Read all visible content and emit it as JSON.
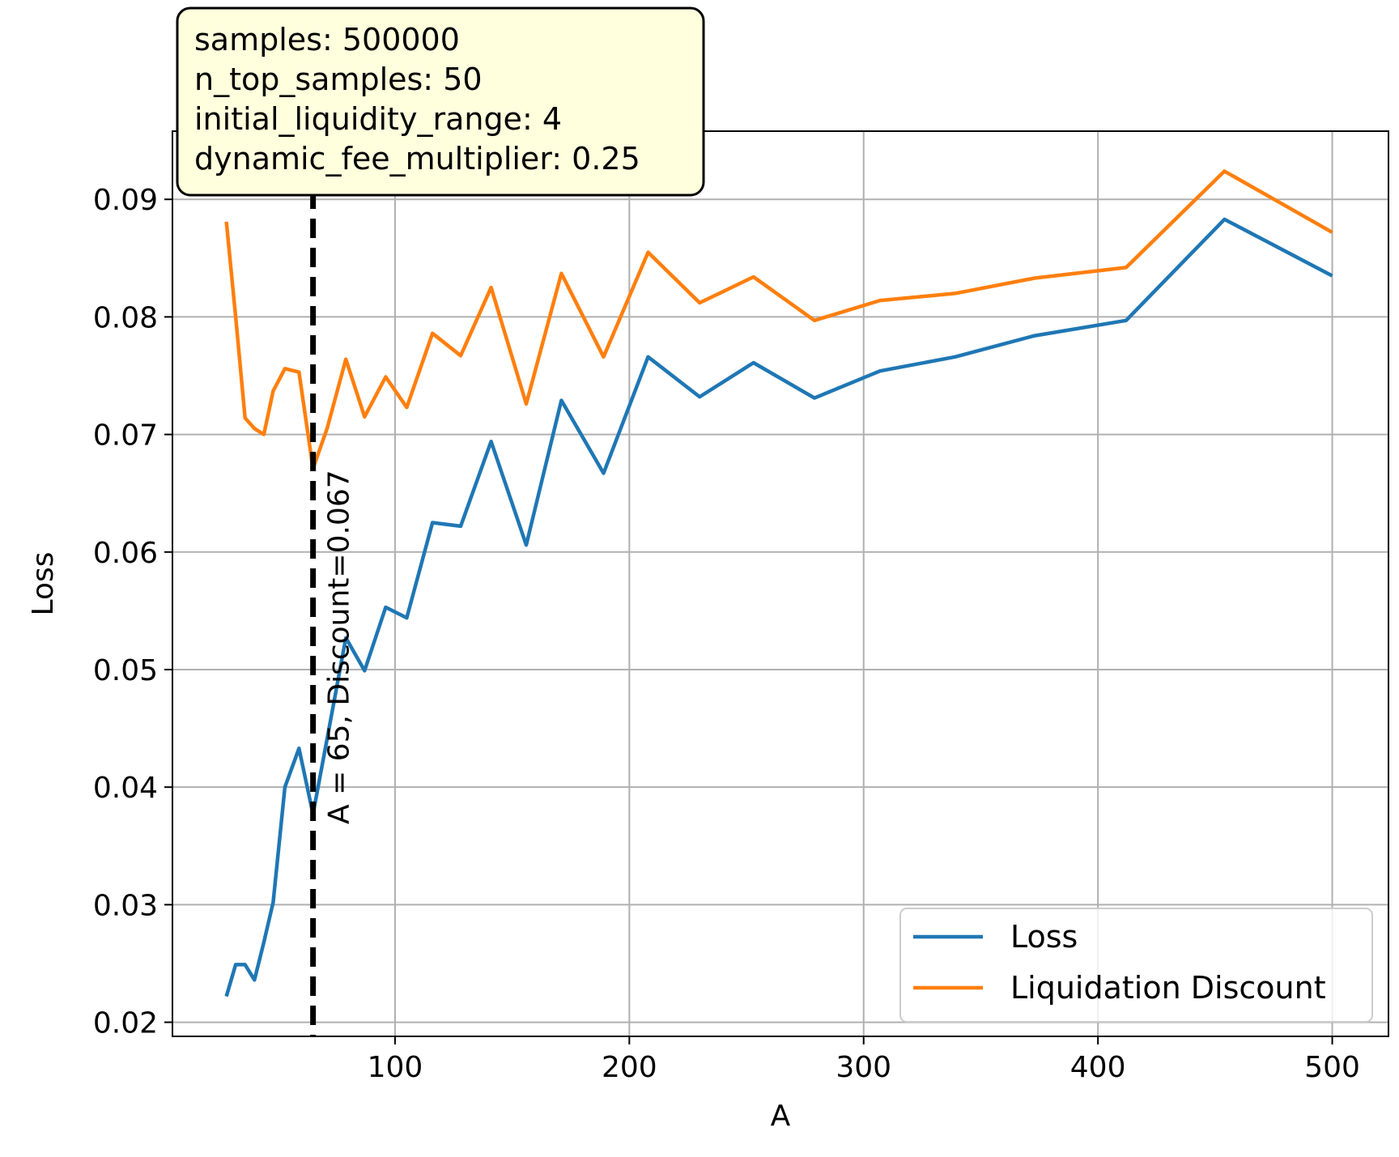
{
  "chart_data": {
    "type": "line",
    "xlabel": "A",
    "ylabel": "Loss",
    "xlim": [
      5,
      524
    ],
    "ylim": [
      0.0188,
      0.0958
    ],
    "grid": true,
    "legend_position": "lower-right",
    "x_ticks": [
      100,
      200,
      300,
      400,
      500
    ],
    "x_tick_labels": [
      "100",
      "200",
      "300",
      "400",
      "500"
    ],
    "y_ticks": [
      0.02,
      0.03,
      0.04,
      0.05,
      0.06,
      0.07,
      0.08,
      0.09
    ],
    "y_tick_labels": [
      "0.02",
      "0.03",
      "0.04",
      "0.05",
      "0.06",
      "0.07",
      "0.08",
      "0.09"
    ],
    "x": [
      28,
      32,
      36,
      40,
      44,
      48,
      53,
      59,
      65,
      71,
      79,
      87,
      96,
      105,
      116,
      128,
      141,
      156,
      171,
      189,
      208,
      230,
      253,
      279,
      307,
      339,
      373,
      412,
      454,
      500
    ],
    "series": [
      {
        "name": "Loss",
        "color": "#1f77b4",
        "values": [
          0.0222,
          0.0249,
          0.0249,
          0.0236,
          0.0268,
          0.0302,
          0.04,
          0.0433,
          0.0377,
          0.0441,
          0.0527,
          0.0499,
          0.0553,
          0.0544,
          0.0625,
          0.0622,
          0.0694,
          0.0606,
          0.0729,
          0.0667,
          0.0766,
          0.0732,
          0.0761,
          0.0731,
          0.0754,
          0.0766,
          0.0784,
          0.0797,
          0.0883,
          0.0835
        ]
      },
      {
        "name": "Liquidation Discount",
        "color": "#ff7f0e",
        "values": [
          0.0881,
          0.08,
          0.0714,
          0.0705,
          0.07,
          0.0737,
          0.0756,
          0.0753,
          0.0671,
          0.0705,
          0.0764,
          0.0715,
          0.0749,
          0.0723,
          0.0786,
          0.0767,
          0.0825,
          0.0726,
          0.0837,
          0.0766,
          0.0855,
          0.0812,
          0.0834,
          0.0797,
          0.0814,
          0.082,
          0.0833,
          0.0842,
          0.0924,
          0.0872
        ]
      }
    ],
    "reference_line": {
      "x": 65,
      "style": "dashed",
      "color": "#000000",
      "label": "A = 65, Discount=0.067"
    },
    "annotation_box": {
      "lines": [
        "samples: 500000",
        "n_top_samples: 50",
        "initial_liquidity_range: 4",
        "dynamic_fee_multiplier: 0.25"
      ],
      "background": "#ffffdd"
    }
  }
}
